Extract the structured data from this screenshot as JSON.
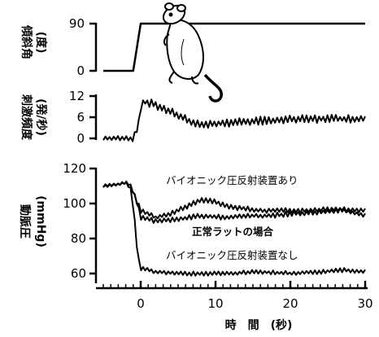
{
  "chart_data": [
    {
      "type": "line",
      "id": "tilt",
      "ylabel_lines": [
        "傾斜角",
        "(度)"
      ],
      "yticks": [
        0,
        90
      ],
      "ylim": [
        0,
        90
      ],
      "series": [
        {
          "points": [
            [
              -5,
              0
            ],
            [
              -1,
              0
            ],
            [
              0,
              90
            ],
            [
              30,
              90
            ]
          ]
        }
      ]
    },
    {
      "type": "line",
      "id": "stim",
      "ylabel_lines": [
        "刺激頻度",
        "(発/秒)"
      ],
      "yticks": [
        0,
        6,
        12
      ],
      "ylim": [
        0,
        12
      ],
      "series": [
        {
          "points": [
            [
              -5,
              0
            ],
            [
              -1,
              0
            ],
            [
              -0.3,
              4
            ],
            [
              0,
              9
            ],
            [
              0.5,
              10.5
            ],
            [
              2,
              9.5
            ],
            [
              4,
              7.5
            ],
            [
              6,
              5.5
            ],
            [
              7,
              4
            ],
            [
              9,
              4
            ],
            [
              12,
              4.5
            ],
            [
              16,
              5
            ],
            [
              20,
              5.3
            ],
            [
              25,
              5.6
            ],
            [
              30,
              5.5
            ]
          ],
          "noise": 1.2
        }
      ]
    },
    {
      "type": "line",
      "id": "bp",
      "ylabel_lines": [
        "動脈圧",
        "(mmHg)"
      ],
      "yticks": [
        60,
        80,
        100,
        120
      ],
      "ylim": [
        57,
        120
      ],
      "xticks": [
        0,
        10,
        20,
        30
      ],
      "xlim": [
        -5.5,
        30
      ],
      "xlabel": "時　間　(秒)",
      "series": [
        {
          "name": "バイオニック圧反射装置あり",
          "points": [
            [
              -5,
              110
            ],
            [
              -3,
              111
            ],
            [
              -2,
              112
            ],
            [
              -1.3,
              110
            ],
            [
              -0.7,
              103
            ],
            [
              0,
              96
            ],
            [
              2,
              92
            ],
            [
              4,
              94
            ],
            [
              6,
              98
            ],
            [
              8,
              102
            ],
            [
              10,
              101
            ],
            [
              12,
              98
            ],
            [
              14,
              97
            ],
            [
              16,
              96
            ],
            [
              18,
              96
            ],
            [
              22,
              96
            ],
            [
              26,
              97
            ],
            [
              30,
              96
            ]
          ],
          "noise": 1.5
        },
        {
          "name": "正常ラットの場合",
          "points": [
            [
              -5,
              110
            ],
            [
              -3,
              111
            ],
            [
              -2,
              112
            ],
            [
              -1.3,
              110
            ],
            [
              -0.5,
              101
            ],
            [
              0,
              92
            ],
            [
              2,
              90
            ],
            [
              5,
              91
            ],
            [
              8,
              93
            ],
            [
              11,
              92
            ],
            [
              14,
              93
            ],
            [
              17,
              93
            ],
            [
              20,
              94
            ],
            [
              24,
              95
            ],
            [
              27,
              96
            ],
            [
              30,
              93
            ]
          ],
          "noise": 1.5
        },
        {
          "name": "バイオニック圧反射装置なし",
          "points": [
            [
              -5,
              110
            ],
            [
              -3,
              111
            ],
            [
              -2,
              112
            ],
            [
              -1.3,
              108
            ],
            [
              -0.8,
              90
            ],
            [
              -0.4,
              70
            ],
            [
              0,
              63
            ],
            [
              2,
              61
            ],
            [
              5,
              60
            ],
            [
              8,
              60
            ],
            [
              12,
              60
            ],
            [
              16,
              61
            ],
            [
              20,
              60
            ],
            [
              24,
              61
            ],
            [
              27,
              62
            ],
            [
              30,
              61
            ]
          ],
          "noise": 1.3
        }
      ]
    }
  ],
  "annotations": {
    "with_device": "バイオニック圧反射装置あり",
    "normal": "正常ラットの場合",
    "without_device": "バイオニック圧反射装置なし"
  }
}
